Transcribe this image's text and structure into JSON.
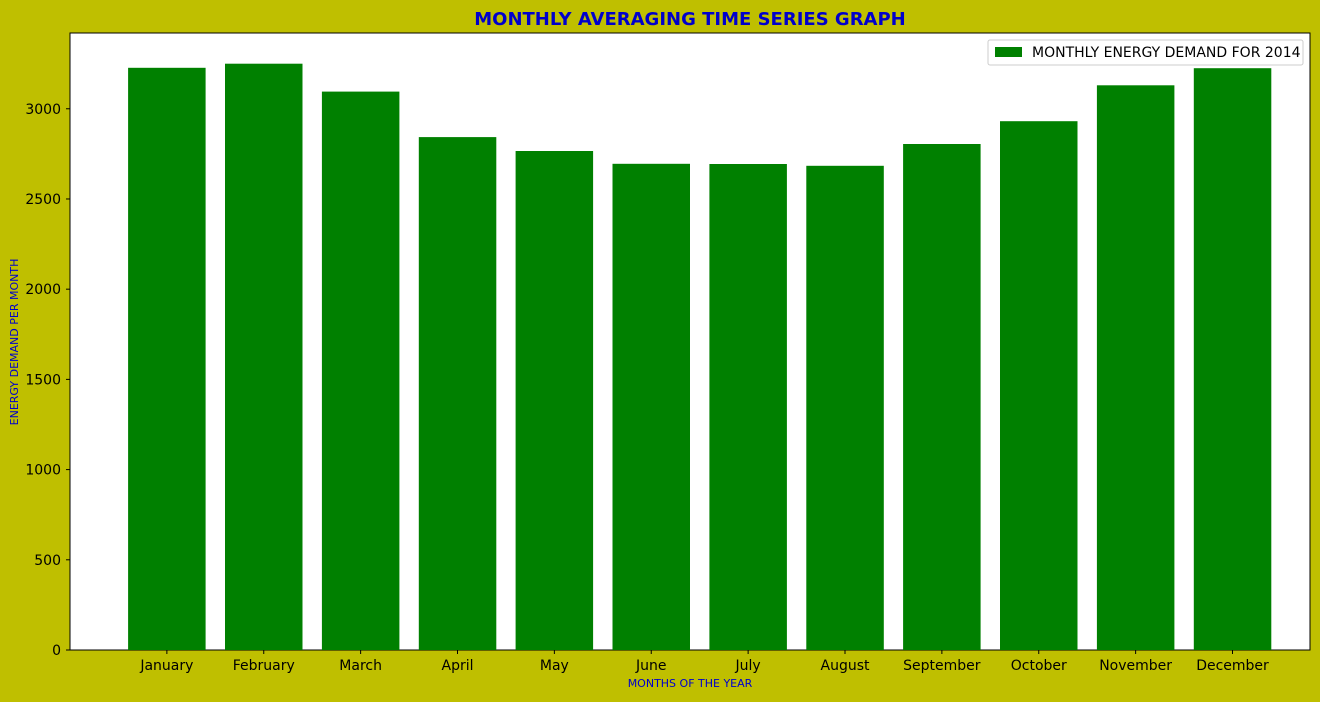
{
  "colors": {
    "background": "#bfbf00",
    "plot_background": "#ffffff",
    "bar": "#008000",
    "title": "#0000cc",
    "axis_label": "#0000cc",
    "tick_text": "#000000"
  },
  "chart_data": {
    "type": "bar",
    "title": "MONTHLY AVERAGING TIME SERIES GRAPH",
    "xlabel": "MONTHS OF THE YEAR",
    "ylabel": "ENERGY DEMAND PER MONTH",
    "categories": [
      "January",
      "February",
      "March",
      "April",
      "May",
      "June",
      "July",
      "August",
      "September",
      "October",
      "November",
      "December"
    ],
    "series": [
      {
        "name": "MONTHLY ENERGY DEMAND FOR 2014",
        "values": [
          3227,
          3250,
          3095,
          2843,
          2766,
          2695,
          2694,
          2684,
          2805,
          2931,
          3130,
          3225
        ]
      }
    ],
    "ylim": [
      0,
      3420
    ],
    "yticks": [
      0,
      500,
      1000,
      1500,
      2000,
      2500,
      3000
    ],
    "grid": false,
    "legend_position": "top-right"
  }
}
